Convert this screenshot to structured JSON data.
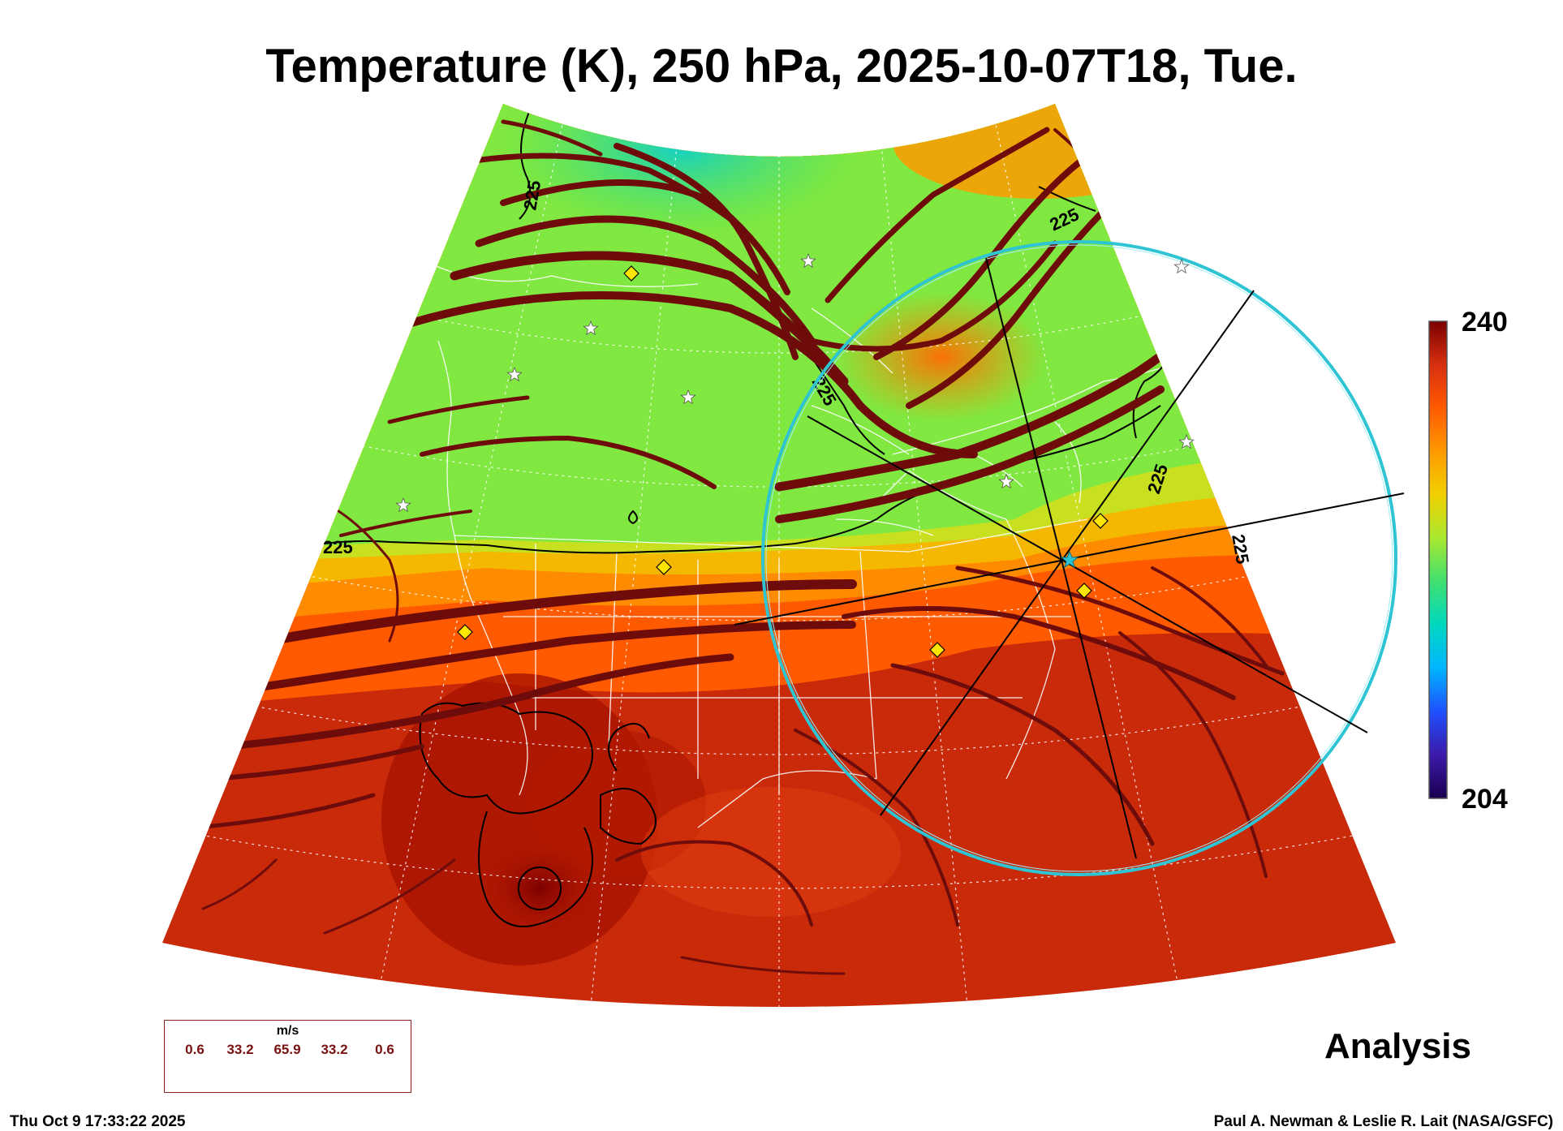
{
  "title": "Temperature (K), 250 hPa, 2025-10-07T18, Tue.",
  "colorbar": {
    "max_label": "240",
    "min_label": "204",
    "colors": [
      "#1a0050",
      "#3a1aa8",
      "#2050ff",
      "#00b4ff",
      "#00d8c0",
      "#40e070",
      "#a8e830",
      "#f0d000",
      "#ff9a00",
      "#ff5a00",
      "#d83010",
      "#7a0000"
    ]
  },
  "contour_labels": {
    "label_1": "225",
    "label_2": "225",
    "label_3": "225",
    "label_4": "225",
    "label_5": "225",
    "label_6": "225"
  },
  "wind_legend": {
    "units": "m/s",
    "values": [
      "0.6",
      "33.2",
      "65.9",
      "33.2",
      "0.6"
    ]
  },
  "analysis_label": "Analysis",
  "footer": {
    "timestamp": "Thu Oct  9 17:33:22 2025",
    "credit": "Paul A. Newman & Leslie R. Lait (NASA/GSFC)"
  },
  "colors": {
    "stream": "#6e0c0c",
    "circle": "#2ec4d4",
    "marker_fill": "#ffe600",
    "star": "#ffffff",
    "contour": "#000000"
  }
}
